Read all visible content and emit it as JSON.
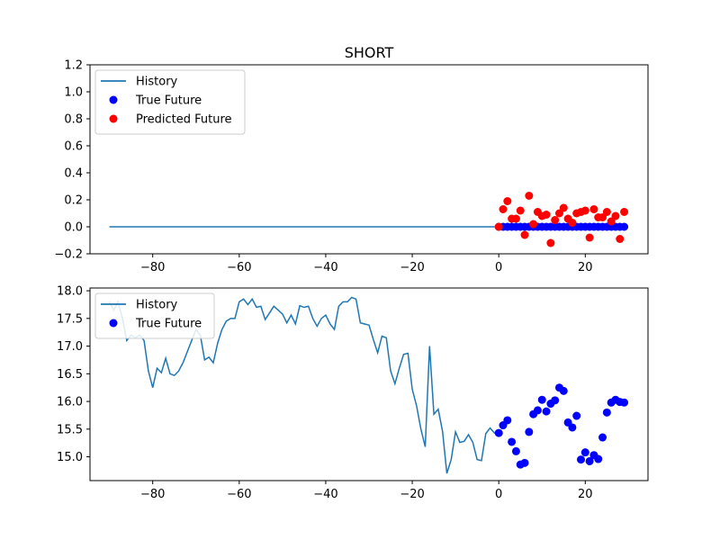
{
  "chart_data": [
    {
      "type": "scatter",
      "title": "SHORT",
      "xlabel": "",
      "ylabel": "",
      "xlim": [
        -94.5,
        34.5
      ],
      "ylim": [
        -0.2,
        1.2
      ],
      "xticks": [
        -80,
        -60,
        -40,
        -20,
        0,
        20
      ],
      "xtick_labels": [
        "−80",
        "−60",
        "−40",
        "−20",
        "0",
        "20"
      ],
      "yticks": [
        -0.2,
        0.0,
        0.2,
        0.4,
        0.6,
        0.8,
        1.0,
        1.2
      ],
      "ytick_labels": [
        "−0.2",
        "0.0",
        "0.2",
        "0.4",
        "0.6",
        "0.8",
        "1.0",
        "1.2"
      ],
      "grid": false,
      "legend": "upper-left",
      "legend_entries": [
        {
          "label": "History",
          "marker": "line",
          "color": "#1f77b4"
        },
        {
          "label": "True Future",
          "marker": "dot",
          "color": "#0000ff"
        },
        {
          "label": "Predicted Future",
          "marker": "dot",
          "color": "#ff0000"
        }
      ],
      "series": [
        {
          "name": "History",
          "kind": "line",
          "color": "#1f77b4",
          "x_start": -90,
          "x_end": -1,
          "value": 0.0
        },
        {
          "name": "True Future",
          "kind": "scatter",
          "color": "#0000ff",
          "x": [
            0,
            1,
            2,
            3,
            4,
            5,
            6,
            7,
            8,
            9,
            10,
            11,
            12,
            13,
            14,
            15,
            16,
            17,
            18,
            19,
            20,
            21,
            22,
            23,
            24,
            25,
            26,
            27,
            28,
            29
          ],
          "y": [
            0,
            0,
            0,
            0,
            0,
            0,
            0,
            0,
            0,
            0,
            0,
            0,
            0,
            0,
            0,
            0,
            0,
            0,
            0,
            0,
            0,
            0,
            0,
            0,
            0,
            0,
            0,
            0,
            0,
            0
          ]
        },
        {
          "name": "Predicted Future",
          "kind": "scatter",
          "color": "#ff0000",
          "x": [
            0,
            1,
            2,
            3,
            4,
            5,
            6,
            7,
            8,
            9,
            10,
            11,
            12,
            13,
            14,
            15,
            16,
            17,
            18,
            19,
            20,
            21,
            22,
            23,
            24,
            25,
            26,
            27,
            28,
            29
          ],
          "y": [
            0.0,
            0.13,
            0.19,
            0.06,
            0.06,
            0.12,
            -0.06,
            0.23,
            0.02,
            0.11,
            0.08,
            0.09,
            -0.12,
            0.05,
            0.1,
            0.14,
            0.06,
            0.03,
            0.1,
            0.11,
            0.12,
            -0.08,
            0.13,
            0.07,
            0.07,
            0.11,
            0.04,
            0.08,
            -0.09,
            0.11
          ]
        }
      ]
    },
    {
      "type": "scatter",
      "title": "",
      "xlabel": "",
      "ylabel": "",
      "xlim": [
        -94.5,
        34.5
      ],
      "ylim": [
        14.57,
        18.05
      ],
      "xticks": [
        -80,
        -60,
        -40,
        -20,
        0,
        20
      ],
      "xtick_labels": [
        "−80",
        "−60",
        "−40",
        "−20",
        "0",
        "20"
      ],
      "yticks": [
        15.0,
        15.5,
        16.0,
        16.5,
        17.0,
        17.5,
        18.0
      ],
      "ytick_labels": [
        "15.0",
        "15.5",
        "16.0",
        "16.5",
        "17.0",
        "17.5",
        "18.0"
      ],
      "grid": false,
      "legend": "upper-left",
      "legend_entries": [
        {
          "label": "History",
          "marker": "line",
          "color": "#1f77b4"
        },
        {
          "label": "True Future",
          "marker": "dot",
          "color": "#0000ff"
        }
      ],
      "series": [
        {
          "name": "History",
          "kind": "line",
          "color": "#1f77b4",
          "x": [
            -90,
            -89,
            -88,
            -87,
            -86,
            -85,
            -84,
            -83,
            -82,
            -81,
            -80,
            -79,
            -78,
            -77,
            -76,
            -75,
            -74,
            -73,
            -72,
            -71,
            -70,
            -69,
            -68,
            -67,
            -66,
            -65,
            -64,
            -63,
            -62,
            -61,
            -60,
            -59,
            -58,
            -57,
            -56,
            -55,
            -54,
            -53,
            -52,
            -51,
            -50,
            -49,
            -48,
            -47,
            -46,
            -45,
            -44,
            -43,
            -42,
            -41,
            -40,
            -39,
            -38,
            -37,
            -36,
            -35,
            -34,
            -33,
            -32,
            -31,
            -30,
            -29,
            -28,
            -27,
            -26,
            -25,
            -24,
            -23,
            -22,
            -21,
            -20,
            -19,
            -18,
            -17,
            -16,
            -15,
            -14,
            -13,
            -12,
            -11,
            -10,
            -9,
            -8,
            -7,
            -6,
            -5,
            -4,
            -3,
            -2,
            -1
          ],
          "y": [
            17.8,
            17.65,
            17.8,
            17.5,
            17.1,
            17.2,
            17.15,
            17.2,
            17.1,
            16.55,
            16.25,
            16.6,
            16.52,
            16.78,
            16.5,
            16.47,
            16.55,
            16.7,
            16.9,
            17.1,
            17.3,
            17.2,
            16.75,
            16.8,
            16.7,
            17.05,
            17.3,
            17.45,
            17.5,
            17.5,
            17.8,
            17.85,
            17.75,
            17.85,
            17.7,
            17.72,
            17.48,
            17.6,
            17.72,
            17.65,
            17.58,
            17.42,
            17.56,
            17.4,
            17.73,
            17.7,
            17.72,
            17.5,
            17.36,
            17.5,
            17.56,
            17.4,
            17.3,
            17.72,
            17.8,
            17.8,
            17.88,
            17.85,
            17.42,
            17.4,
            17.38,
            17.12,
            16.88,
            17.18,
            17.15,
            16.55,
            16.32,
            16.6,
            16.85,
            16.87,
            16.22,
            15.92,
            15.5,
            15.18,
            17.0,
            15.77,
            15.86,
            15.46,
            14.7,
            14.95,
            15.45,
            15.26,
            15.28,
            15.4,
            15.26,
            14.95,
            14.93,
            15.42,
            15.52,
            15.43
          ],
          "end_link": {
            "x": 0,
            "y": 15.43
          }
        },
        {
          "name": "True Future",
          "kind": "scatter",
          "color": "#0000ff",
          "x": [
            0,
            1,
            2,
            3,
            4,
            5,
            6,
            7,
            8,
            9,
            10,
            11,
            12,
            13,
            14,
            15,
            16,
            17,
            18,
            19,
            20,
            21,
            22,
            23,
            24,
            25,
            26,
            27,
            28,
            29
          ],
          "y": [
            15.43,
            15.57,
            15.66,
            15.27,
            15.1,
            14.86,
            14.89,
            15.45,
            15.77,
            15.84,
            16.03,
            15.82,
            15.96,
            16.02,
            16.25,
            16.19,
            15.62,
            15.53,
            15.74,
            14.95,
            15.08,
            14.92,
            15.03,
            14.96,
            15.35,
            15.8,
            15.98,
            16.03,
            15.99,
            15.98
          ]
        }
      ]
    }
  ]
}
